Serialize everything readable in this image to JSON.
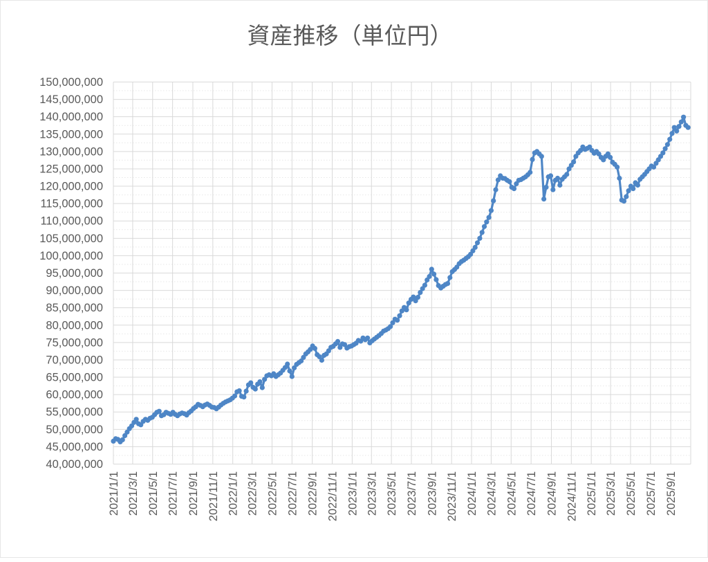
{
  "chart": {
    "title": "資産推移（単位円）",
    "title_color": "#595959",
    "axis_label_color": "#595959",
    "gridline_color": "#d9d9d9",
    "minor_gridline_color": "#e7e7e7",
    "series_color": "#4e86c6",
    "background": "#ffffff",
    "y_axis": {
      "min": 40000000,
      "max": 150000000,
      "major_step": 5000000,
      "minor_step": 2500000,
      "tick_labels": [
        "150,000,000",
        "145,000,000",
        "140,000,000",
        "135,000,000",
        "130,000,000",
        "125,000,000",
        "120,000,000",
        "115,000,000",
        "110,000,000",
        "105,000,000",
        "100,000,000",
        "95,000,000",
        "90,000,000",
        "85,000,000",
        "80,000,000",
        "75,000,000",
        "70,000,000",
        "65,000,000",
        "60,000,000",
        "55,000,000",
        "50,000,000",
        "45,000,000",
        "40,000,000"
      ]
    },
    "x_axis": {
      "tick_labels": [
        "2021/1/1",
        "2021/3/1",
        "2021/5/1",
        "2021/7/1",
        "2021/9/1",
        "2021/11/1",
        "2022/1/1",
        "2022/3/1",
        "2022/5/1",
        "2022/7/1",
        "2022/9/1",
        "2022/11/1",
        "2023/1/1",
        "2023/3/1",
        "2023/5/1",
        "2023/7/1",
        "2023/9/1",
        "2023/11/1",
        "2024/1/1",
        "2024/3/1",
        "2024/5/1",
        "2024/7/1",
        "2024/9/1",
        "2024/11/1",
        "2025/1/1",
        "2025/3/1",
        "2025/5/1",
        "2025/7/1",
        "2025/9/1"
      ],
      "label_every_months": 2,
      "axis_start_date": "2021-01-01",
      "axis_end_date": "2025-11-01"
    }
  },
  "chart_data": {
    "type": "line",
    "title": "資産推移（単位円）",
    "unit": "円",
    "grid": true,
    "legend": false,
    "marker": "circle",
    "ylim": [
      40000000,
      150000000
    ],
    "series_name": "資産",
    "start_date": "2021-01-01",
    "end_date": "2025-10-26",
    "interval_days": 7,
    "value_scale": 1000000,
    "values_millions": [
      46.6,
      47.3,
      47.1,
      46.4,
      47.0,
      48.2,
      49.2,
      50.2,
      51.0,
      52.0,
      52.9,
      51.6,
      51.3,
      52.3,
      52.9,
      52.6,
      53.2,
      53.5,
      54.2,
      54.9,
      55.2,
      53.9,
      54.2,
      54.9,
      54.6,
      54.3,
      54.9,
      54.3,
      53.9,
      54.4,
      54.7,
      54.5,
      54.1,
      54.8,
      55.3,
      56.0,
      56.5,
      57.2,
      56.9,
      56.5,
      57.0,
      57.3,
      56.9,
      56.4,
      56.3,
      55.9,
      56.4,
      57.0,
      57.5,
      57.9,
      58.2,
      58.5,
      59.0,
      59.6,
      60.8,
      61.1,
      59.5,
      59.3,
      61.0,
      62.8,
      63.4,
      62.1,
      61.6,
      63.0,
      63.7,
      62.0,
      64.4,
      65.4,
      65.7,
      65.4,
      66.0,
      65.2,
      65.7,
      66.2,
      67.0,
      67.8,
      68.8,
      66.8,
      65.2,
      67.7,
      68.7,
      69.2,
      69.7,
      70.7,
      71.7,
      72.3,
      73.0,
      74.0,
      73.3,
      71.5,
      70.9,
      69.9,
      71.3,
      71.7,
      72.6,
      73.6,
      73.9,
      74.6,
      75.3,
      73.6,
      74.6,
      74.4,
      73.4,
      73.8,
      74.0,
      74.4,
      74.8,
      75.6,
      75.4,
      76.3,
      75.8,
      76.3,
      74.9,
      75.5,
      76.0,
      76.5,
      77.0,
      77.6,
      78.3,
      78.6,
      79.0,
      79.6,
      80.7,
      81.7,
      81.4,
      82.7,
      84.1,
      85.1,
      84.4,
      86.4,
      87.4,
      88.1,
      87.0,
      88.0,
      89.4,
      90.5,
      91.5,
      93.0,
      94.0,
      96.1,
      94.7,
      93.1,
      91.4,
      90.7,
      91.2,
      91.7,
      92.0,
      93.7,
      95.4,
      96.0,
      96.7,
      97.7,
      98.3,
      98.7,
      99.2,
      99.7,
      100.4,
      101.4,
      102.4,
      103.7,
      105.0,
      106.7,
      108.4,
      109.7,
      111.0,
      113.0,
      115.8,
      119.0,
      121.8,
      123.0,
      122.3,
      122.2,
      121.7,
      121.3,
      119.7,
      119.3,
      120.7,
      121.7,
      121.9,
      122.3,
      122.7,
      123.3,
      124.0,
      127.7,
      129.6,
      130.0,
      129.3,
      128.6,
      116.3,
      119.7,
      122.7,
      123.0,
      119.0,
      121.7,
      122.3,
      120.3,
      122.0,
      122.7,
      123.4,
      125.0,
      126.0,
      127.0,
      128.6,
      129.6,
      130.3,
      131.3,
      130.6,
      130.9,
      131.3,
      130.3,
      129.5,
      130.0,
      129.3,
      128.3,
      127.6,
      128.6,
      129.3,
      128.3,
      126.9,
      126.3,
      125.5,
      122.3,
      116.0,
      115.7,
      117.0,
      118.7,
      120.0,
      119.3,
      121.0,
      120.3,
      122.0,
      122.7,
      123.4,
      124.2,
      125.0,
      125.8,
      125.5,
      126.6,
      127.6,
      128.6,
      129.6,
      130.8,
      132.0,
      133.5,
      135.2,
      136.9,
      135.9,
      137.2,
      138.5,
      139.9,
      137.5,
      136.9
    ]
  }
}
